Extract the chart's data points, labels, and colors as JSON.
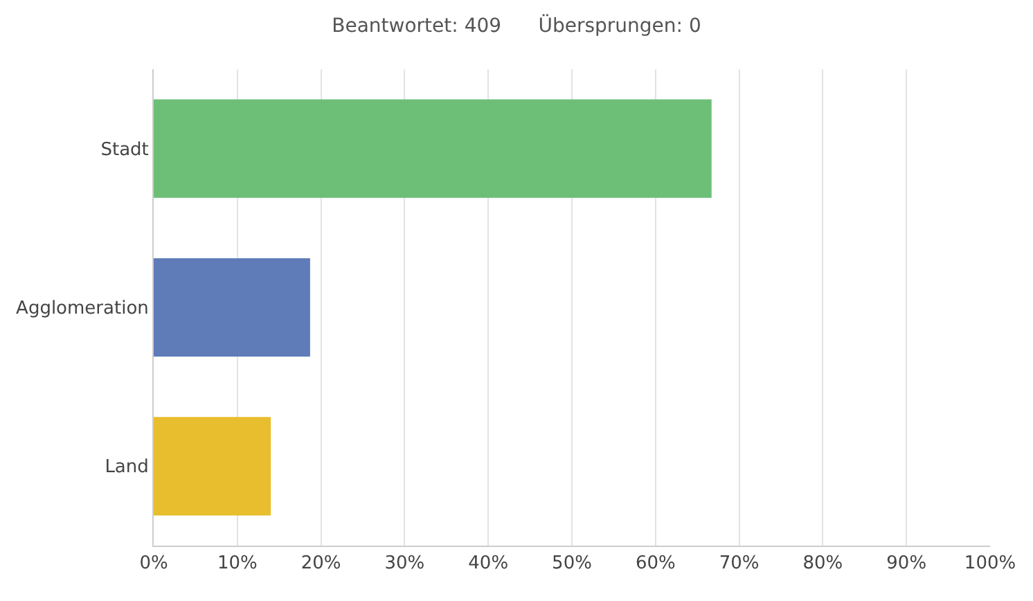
{
  "chart_data": {
    "type": "bar",
    "orientation": "horizontal",
    "title": "Beantwortet: 409      Übersprungen: 0",
    "categories": [
      "Stadt",
      "Agglomeration",
      "Land"
    ],
    "values": [
      66.7,
      18.7,
      14.0
    ],
    "colors": [
      "#6dbf78",
      "#5f7cb8",
      "#e8bd2e"
    ],
    "xlim": [
      0,
      100
    ],
    "xticks": [
      {
        "value": 0,
        "label": "0%"
      },
      {
        "value": 10,
        "label": "10%"
      },
      {
        "value": 20,
        "label": "20%"
      },
      {
        "value": 30,
        "label": "30%"
      },
      {
        "value": 40,
        "label": "40%"
      },
      {
        "value": 50,
        "label": "50%"
      },
      {
        "value": 60,
        "label": "60%"
      },
      {
        "value": 70,
        "label": "70%"
      },
      {
        "value": 80,
        "label": "80%"
      },
      {
        "value": 90,
        "label": "90%"
      },
      {
        "value": 100,
        "label": "100%"
      }
    ],
    "grid": "x",
    "legend": false
  }
}
